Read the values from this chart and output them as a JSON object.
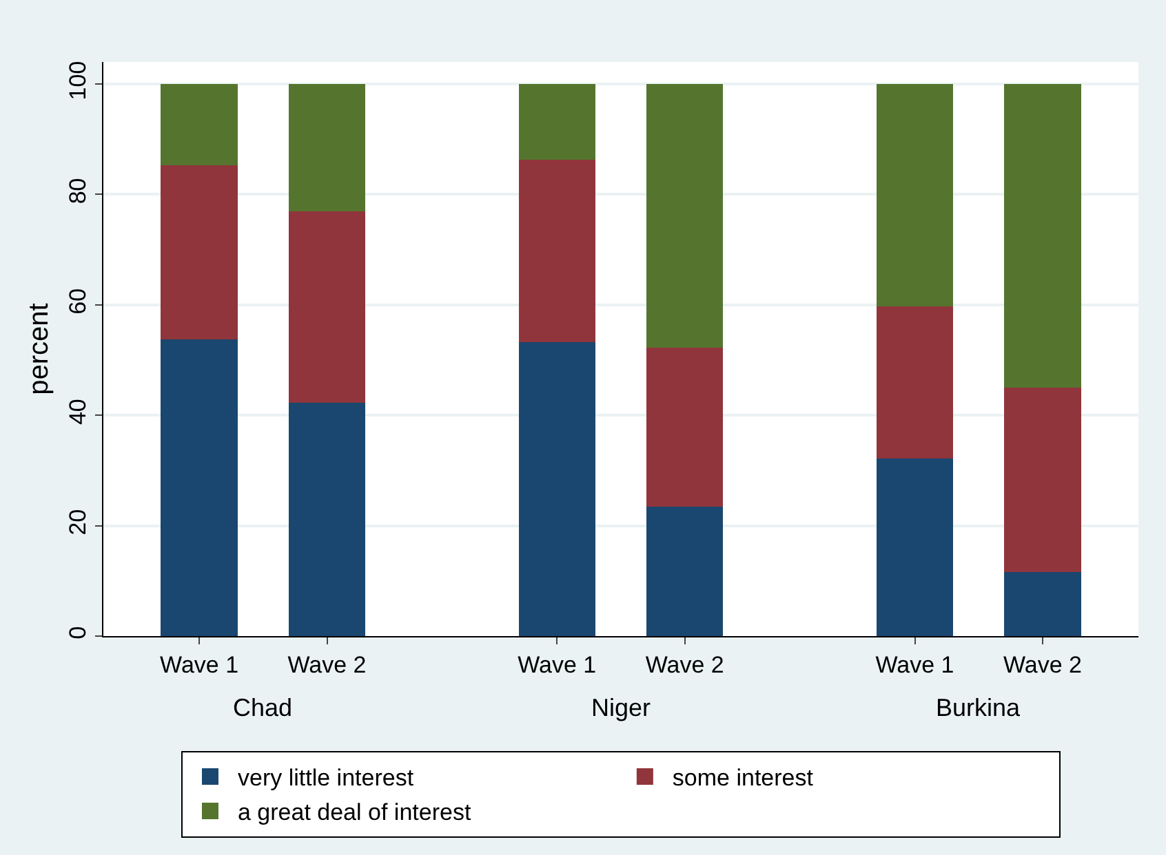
{
  "chart_data": {
    "type": "bar",
    "stacked": true,
    "categories": [
      "Wave 1",
      "Wave 2",
      "Wave 1",
      "Wave 2",
      "Wave 1",
      "Wave 2"
    ],
    "annotations": [
      "Chad",
      "Niger",
      "Burkina"
    ],
    "ylabel": "percent",
    "series": [
      {
        "name": "very little interest",
        "color": "#1a476f",
        "values": [
          53.8,
          42.3,
          53.3,
          23.4,
          32.2,
          11.6
        ]
      },
      {
        "name": "some interest",
        "color": "#90353b",
        "values": [
          31.5,
          34.7,
          33.0,
          28.9,
          27.5,
          33.4
        ]
      },
      {
        "name": "a great deal of interest",
        "color": "#55752f",
        "values": [
          14.7,
          23.0,
          13.7,
          47.7,
          40.3,
          55.0
        ]
      }
    ],
    "ylim": [
      0,
      104
    ],
    "yticks": [
      0,
      20,
      40,
      60,
      80,
      100
    ],
    "grid": "y",
    "legend": "bottom"
  }
}
